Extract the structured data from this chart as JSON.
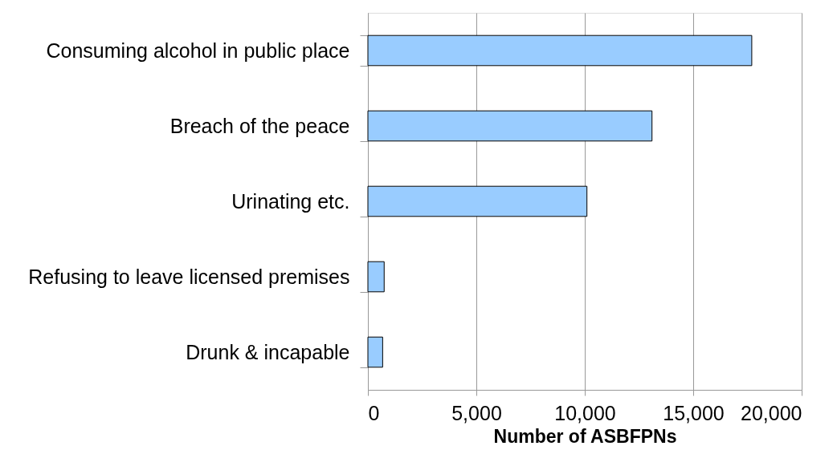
{
  "chart_data": {
    "type": "bar",
    "orientation": "horizontal",
    "xlabel": "Number of ASBFPNs",
    "categories": [
      "Consuming alcohol in public place",
      "Breach of the peace",
      "Urinating etc.",
      "Refusing to leave licensed premises",
      "Drunk & incapable"
    ],
    "values": [
      17700,
      13100,
      10100,
      750,
      680
    ],
    "color": "#99ccff",
    "xlim": [
      0,
      20000
    ],
    "xticks": [
      0,
      {
        "value": 5000,
        "label": "5,000"
      },
      {
        "value": 10000,
        "label": "10,000"
      },
      {
        "value": 15000,
        "label": "15,000"
      },
      {
        "value": 20000,
        "label": "20,000"
      }
    ],
    "grid": "x"
  }
}
